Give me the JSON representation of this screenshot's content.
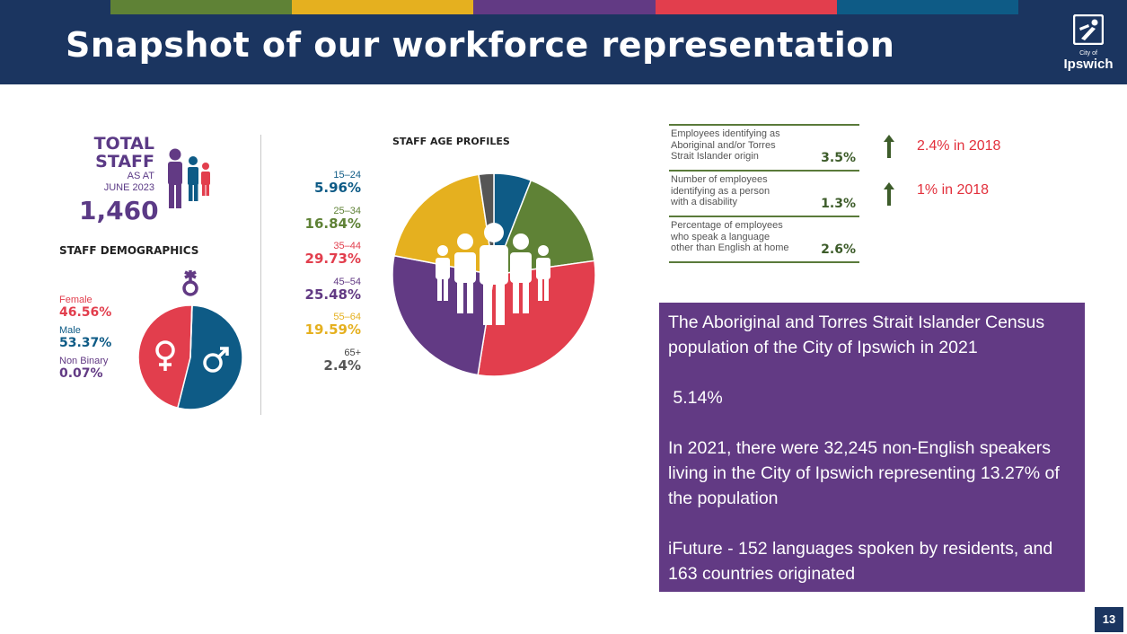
{
  "header": {
    "title": "Snapshot of our workforce representation",
    "stripe_colors": [
      "#5f8236",
      "#e5b01f",
      "#623a84",
      "#e23e4d",
      "#0e5b86"
    ],
    "background": "#1b3560"
  },
  "logo": {
    "small_text": "City of",
    "name": "Ipswich",
    "icon": "ipswich-i-logo-icon"
  },
  "total_staff": {
    "line1": "TOTAL",
    "line2": "STAFF",
    "line3": "AS AT",
    "line4": "JUNE 2023",
    "value": "1,460",
    "icon": "people-group-icon"
  },
  "demographics": {
    "title": "STAFF DEMOGRAPHICS",
    "items": [
      {
        "label": "Female",
        "value": "46.56%",
        "color": "#e23e4d"
      },
      {
        "label": "Male",
        "value": "53.37%",
        "color": "#0e5b86"
      },
      {
        "label": "Non Binary",
        "value": "0.07%",
        "color": "#623a84"
      }
    ],
    "icons": [
      "female-symbol-icon",
      "male-symbol-icon",
      "non-binary-symbol-icon"
    ]
  },
  "age_profiles": {
    "title": "STAFF AGE PROFILES",
    "items": [
      {
        "label": "15–24",
        "value": "5.96%",
        "color": "#0e5b86"
      },
      {
        "label": "25–34",
        "value": "16.84%",
        "color": "#5f8236"
      },
      {
        "label": "35–44",
        "value": "29.73%",
        "color": "#e23e4d"
      },
      {
        "label": "45–54",
        "value": "25.48%",
        "color": "#623a84"
      },
      {
        "label": "55–64",
        "value": "19.59%",
        "color": "#e5b01f"
      },
      {
        "label": "65+",
        "value": "2.4%",
        "color": "#555555"
      }
    ]
  },
  "chart_data": [
    {
      "type": "pie",
      "title": "STAFF DEMOGRAPHICS",
      "categories": [
        "Female",
        "Male",
        "Non Binary"
      ],
      "values": [
        46.56,
        53.37,
        0.07
      ],
      "colors": [
        "#e23e4d",
        "#0e5b86",
        "#623a84"
      ]
    },
    {
      "type": "pie",
      "title": "STAFF AGE PROFILES",
      "categories": [
        "15–24",
        "25–34",
        "35–44",
        "45–54",
        "55–64",
        "65+"
      ],
      "values": [
        5.96,
        16.84,
        29.73,
        25.48,
        19.59,
        2.4
      ],
      "colors": [
        "#0e5b86",
        "#5f8236",
        "#e23e4d",
        "#623a84",
        "#e5b01f",
        "#555555"
      ]
    }
  ],
  "stats": [
    {
      "lines": [
        "Employees identifying as",
        "Aboriginal and/or Torres",
        "Strait Islander origin"
      ],
      "value": "3.5%"
    },
    {
      "lines": [
        "Number of employees",
        "identifying as a person",
        "with a disability"
      ],
      "value": "1.3%"
    },
    {
      "lines": [
        "Percentage of employees",
        "who speak a language",
        "other than English at home"
      ],
      "value": "2.6%"
    }
  ],
  "notes": {
    "note1": "2.4% in 2018",
    "note2": "1% in 2018",
    "arrow_color": "#3d5c2a",
    "note_color": "#e2303c"
  },
  "census": {
    "p1": "The Aboriginal and Torres Strait Islander Census population of the City of Ipswich in 2021",
    "p2": " 5.14%",
    "p3": "In 2021, there were 32,245 non-English speakers living in the City of Ipswich representing 13.27% of the population",
    "p4": "iFuture  - 152 languages spoken by residents, and 163 countries originated"
  },
  "page_number": "13"
}
